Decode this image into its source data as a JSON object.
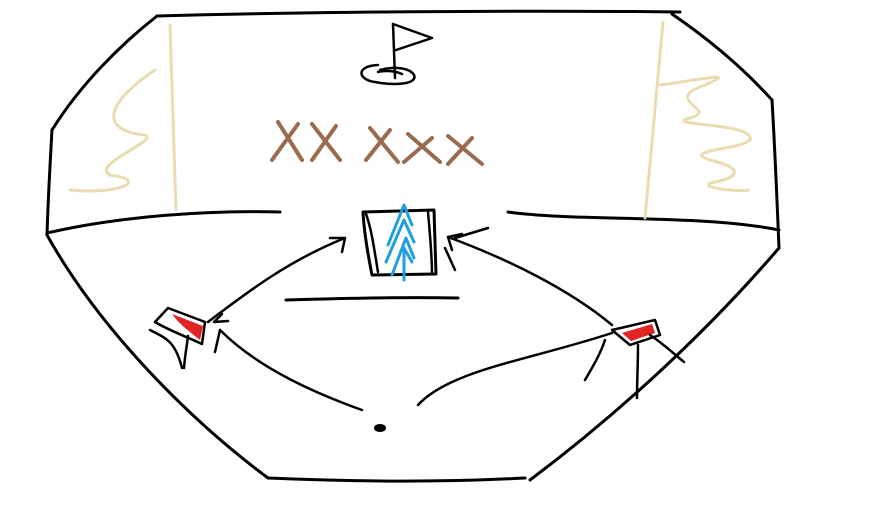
{
  "colors": {
    "background": "#ffffff",
    "ink": "#000000",
    "wall_texture": "#eadcb0",
    "obstacle_cross": "#9a6b4c",
    "ramp_arrows": "#1e9fe0",
    "bumper_fill": "#e02424"
  },
  "icons": {
    "flag": "golf-flag-icon",
    "hole": "golf-hole-icon",
    "ball": "golf-ball-icon"
  }
}
